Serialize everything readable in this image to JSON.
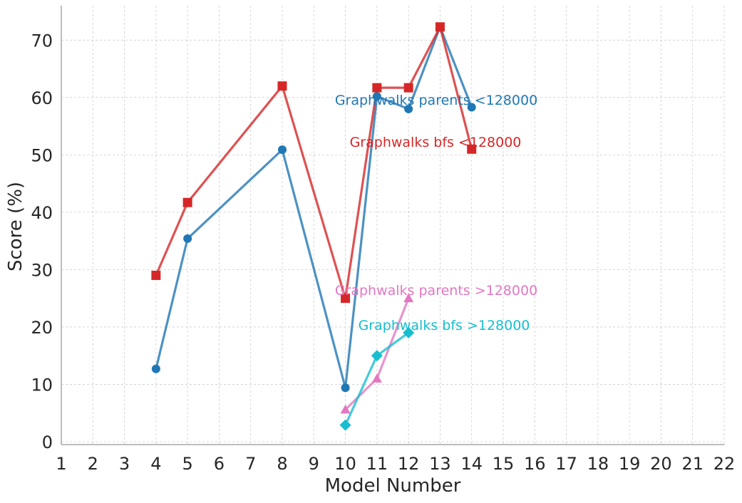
{
  "chart_data": {
    "type": "line",
    "title": "",
    "xlabel": "Model Number",
    "ylabel": "Score (%)",
    "xlim": [
      1,
      22
    ],
    "ylim": [
      -0.5,
      76
    ],
    "xticks": [
      1,
      2,
      3,
      4,
      5,
      6,
      7,
      8,
      9,
      10,
      11,
      12,
      13,
      14,
      15,
      16,
      17,
      18,
      19,
      20,
      21,
      22
    ],
    "yticks": [
      0,
      10,
      20,
      30,
      40,
      50,
      60,
      70
    ],
    "grid": true,
    "series": [
      {
        "name": "Graphwalks parents <128000",
        "color": "#1f77b4",
        "marker": "circle",
        "x": [
          4,
          5,
          8,
          10,
          11,
          12,
          13,
          14
        ],
        "y": [
          12.7,
          35.4,
          50.9,
          9.4,
          60.2,
          58.0,
          72.3,
          58.3
        ]
      },
      {
        "name": "Graphwalks bfs <128000",
        "color": "#d62728",
        "marker": "square",
        "x": [
          4,
          5,
          8,
          10,
          11,
          12,
          13,
          14
        ],
        "y": [
          29.0,
          41.7,
          62.0,
          25.0,
          61.7,
          61.7,
          72.3,
          51.0
        ]
      },
      {
        "name": "Graphwalks parents >128000",
        "color": "#e377c2",
        "marker": "triangle",
        "x": [
          10,
          11,
          12
        ],
        "y": [
          5.6,
          11.0,
          25.0
        ]
      },
      {
        "name": "Graphwalks bfs >128000",
        "color": "#17becf",
        "marker": "diamond",
        "x": [
          10,
          11,
          12
        ],
        "y": [
          2.9,
          15.0,
          19.0
        ]
      }
    ]
  }
}
